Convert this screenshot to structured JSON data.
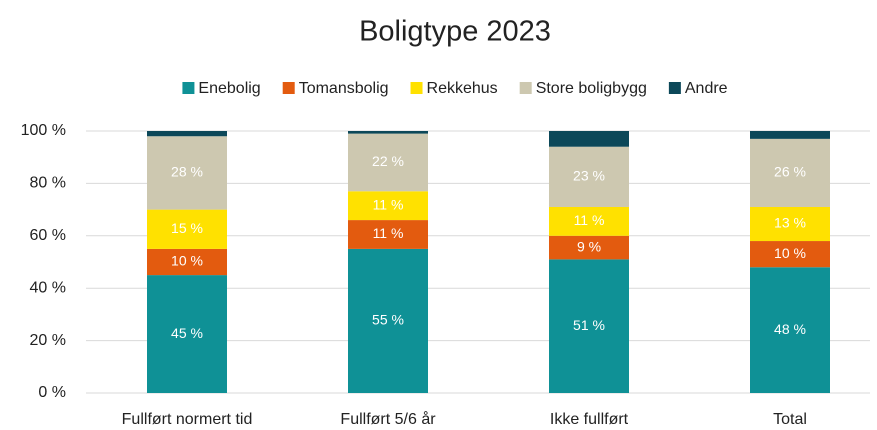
{
  "chart_data": {
    "type": "stacked_bar",
    "title": "Boligtype 2023",
    "categories": [
      "Fullført normert tid",
      "Fullført 5/6 år",
      "Ikke fullført",
      "Total"
    ],
    "series": [
      {
        "name": "Enebolig",
        "color": "#0f9196",
        "values": [
          45,
          55,
          51,
          48
        ],
        "value_labels": [
          "45 %",
          "55 %",
          "51 %",
          "48 %"
        ]
      },
      {
        "name": "Tomansbolig",
        "color": "#e35b0f",
        "values": [
          10,
          11,
          9,
          10
        ],
        "value_labels": [
          "10 %",
          "11 %",
          "9 %",
          "10 %"
        ]
      },
      {
        "name": "Rekkehus",
        "color": "#ffe100",
        "values": [
          15,
          11,
          11,
          13
        ],
        "value_labels": [
          "15 %",
          "11 %",
          "11 %",
          "13 %"
        ]
      },
      {
        "name": "Store boligbygg",
        "color": "#cdc8b0",
        "values": [
          28,
          22,
          23,
          26
        ],
        "value_labels": [
          "28 %",
          "22 %",
          "23 %",
          "26 %"
        ]
      },
      {
        "name": "Andre",
        "color": "#0c4859",
        "values": [
          2,
          1,
          6,
          3
        ]
      }
    ],
    "ylim": [
      0,
      100
    ],
    "yticks": [
      {
        "value": 0,
        "label": "0 %"
      },
      {
        "value": 20,
        "label": "20 %"
      },
      {
        "value": 40,
        "label": "40 %"
      },
      {
        "value": 60,
        "label": "60 %"
      },
      {
        "value": 80,
        "label": "80 %"
      },
      {
        "value": 100,
        "label": "100 %"
      }
    ],
    "grid": true,
    "legend": "top"
  }
}
